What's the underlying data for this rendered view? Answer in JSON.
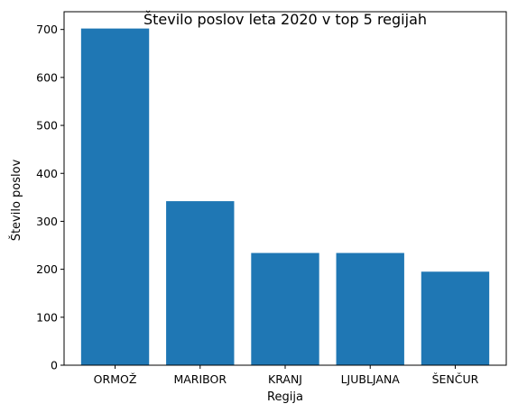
{
  "chart_data": {
    "type": "bar",
    "title": "Število poslov leta 2020 v top 5 regijah",
    "xlabel": "Regija",
    "ylabel": "Število poslov",
    "categories": [
      "ORMOŽ",
      "MARIBOR",
      "KRANJ",
      "LJUBLJANA",
      "ŠENČUR"
    ],
    "values": [
      702,
      342,
      234,
      234,
      195
    ],
    "ylim": [
      0,
      737
    ],
    "yticks": [
      0,
      100,
      200,
      300,
      400,
      500,
      600,
      700
    ],
    "grid": false,
    "bar_color": "#1f77b4"
  }
}
